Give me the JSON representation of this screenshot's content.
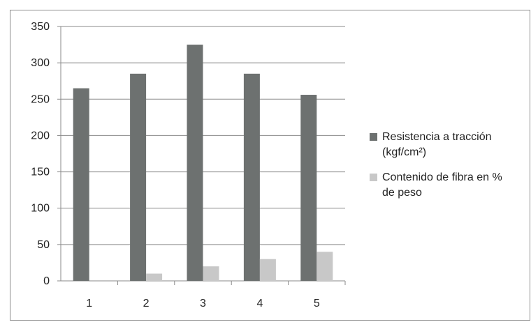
{
  "chart_data": {
    "type": "bar",
    "title": "",
    "xlabel": "",
    "ylabel": "",
    "categories": [
      "1",
      "2",
      "3",
      "4",
      "5"
    ],
    "ylim": [
      0,
      350
    ],
    "yticks": [
      0,
      50,
      100,
      150,
      200,
      250,
      300,
      350
    ],
    "grid": true,
    "legend_position": "right",
    "series": [
      {
        "name": "Resistencia a tracción\n(kgf/cm²)",
        "color": "#6d7170",
        "values": [
          265,
          285,
          325,
          285,
          256
        ]
      },
      {
        "name": "Contenido de fibra en %\nde peso",
        "color": "#c8c8c8",
        "values": [
          0,
          10,
          20,
          30,
          40
        ]
      }
    ]
  }
}
